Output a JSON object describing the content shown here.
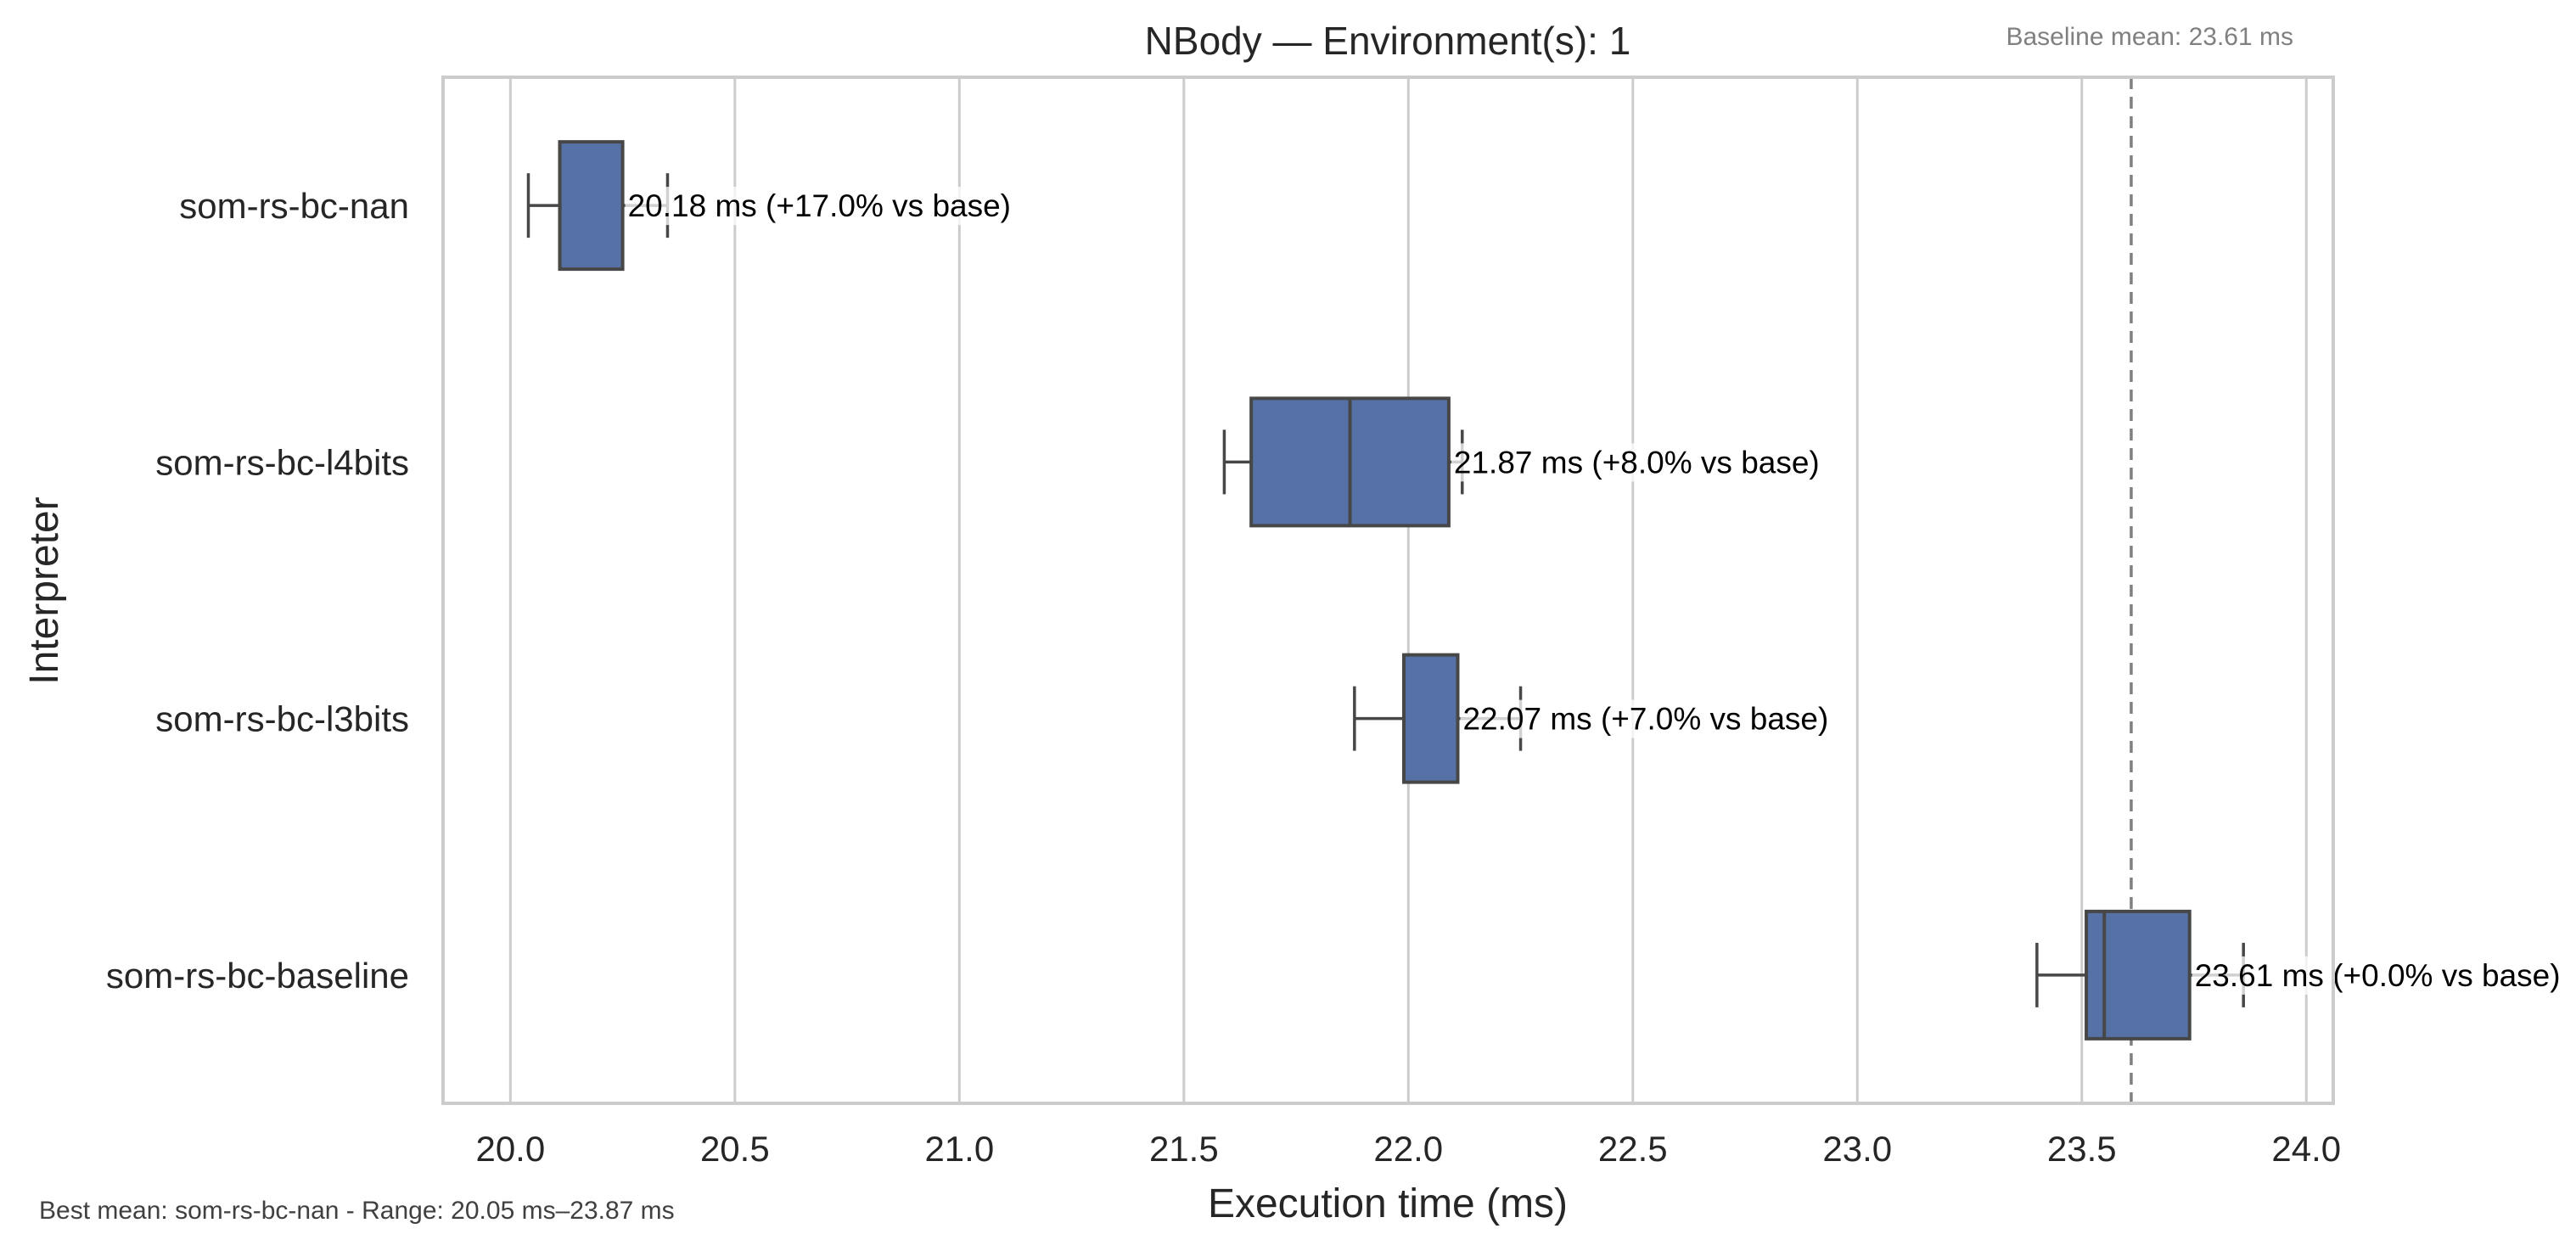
{
  "chart_data": {
    "type": "box",
    "orientation": "horizontal",
    "title": "NBody — Environment(s): 1",
    "xlabel": "Execution time (ms)",
    "ylabel": "Interpreter",
    "xlim": [
      19.85,
      24.06
    ],
    "x_ticks": [
      20.0,
      20.5,
      21.0,
      21.5,
      22.0,
      22.5,
      23.0,
      23.5,
      24.0
    ],
    "x_tick_labels": [
      "20.0",
      "20.5",
      "21.0",
      "21.5",
      "22.0",
      "22.5",
      "23.0",
      "23.5",
      "24.0"
    ],
    "grid": true,
    "box_color": "#5571a6",
    "categories": [
      "som-rs-bc-nan",
      "som-rs-bc-l4bits",
      "som-rs-bc-l3bits",
      "som-rs-bc-baseline"
    ],
    "boxes": [
      {
        "label": "som-rs-bc-nan",
        "whisker_low": 20.04,
        "q1": 20.11,
        "median": 20.11,
        "q3": 20.25,
        "whisker_high": 20.35,
        "annotation": "20.18 ms  (+17.0% vs base)"
      },
      {
        "label": "som-rs-bc-l4bits",
        "whisker_low": 21.59,
        "q1": 21.65,
        "median": 21.87,
        "q3": 22.09,
        "whisker_high": 22.12,
        "annotation": "21.87 ms  (+8.0% vs base)"
      },
      {
        "label": "som-rs-bc-l3bits",
        "whisker_low": 21.88,
        "q1": 21.99,
        "median": 21.99,
        "q3": 22.11,
        "whisker_high": 22.25,
        "annotation": "22.07 ms  (+7.0% vs base)"
      },
      {
        "label": "som-rs-bc-baseline",
        "whisker_low": 23.4,
        "q1": 23.51,
        "median": 23.55,
        "q3": 23.74,
        "whisker_high": 23.86,
        "annotation": "23.61 ms  (+0.0% vs base)"
      }
    ],
    "baseline": {
      "value": 23.61,
      "label": "Baseline mean: 23.61 ms"
    },
    "footer": "Best mean: som-rs-bc-nan - Range: 20.05 ms–23.87 ms"
  }
}
